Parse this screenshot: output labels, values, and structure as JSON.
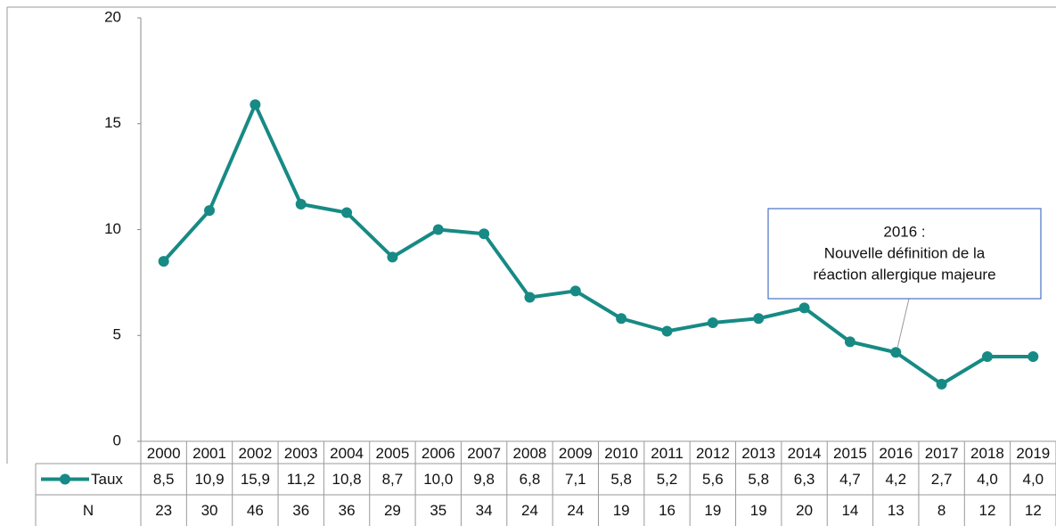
{
  "chart_data": {
    "type": "line",
    "categories": [
      "2000",
      "2001",
      "2002",
      "2003",
      "2004",
      "2005",
      "2006",
      "2007",
      "2008",
      "2009",
      "2010",
      "2011",
      "2012",
      "2013",
      "2014",
      "2015",
      "2016",
      "2017",
      "2018",
      "2019"
    ],
    "series": [
      {
        "name": "Taux",
        "color": "#178a85",
        "values": [
          8.5,
          10.9,
          15.9,
          11.2,
          10.8,
          8.7,
          10.0,
          9.8,
          6.8,
          7.1,
          5.8,
          5.2,
          5.6,
          5.8,
          6.3,
          4.7,
          4.2,
          2.7,
          4.0,
          4.0
        ],
        "value_labels": [
          "8,5",
          "10,9",
          "15,9",
          "11,2",
          "10,8",
          "8,7",
          "10,0",
          "9,8",
          "6,8",
          "7,1",
          "5,8",
          "5,2",
          "5,6",
          "5,8",
          "6,3",
          "4,7",
          "4,2",
          "2,7",
          "4,0",
          "4,0"
        ]
      }
    ],
    "n_row": {
      "name": "N",
      "values": [
        23,
        30,
        46,
        36,
        36,
        29,
        35,
        34,
        24,
        24,
        19,
        16,
        19,
        19,
        20,
        14,
        13,
        8,
        12,
        12
      ]
    },
    "ylim": [
      0,
      20
    ],
    "yticks": [
      0,
      5,
      10,
      15,
      20
    ],
    "annotation": {
      "lines": [
        "2016 :",
        "Nouvelle définition de la",
        "réaction allergique majeure"
      ],
      "category_index": 16
    }
  }
}
